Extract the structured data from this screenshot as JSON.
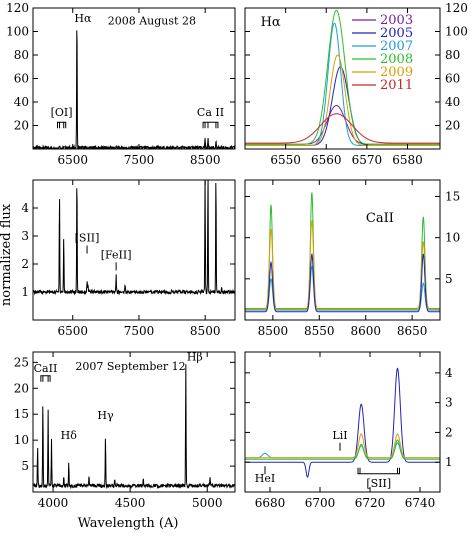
{
  "figure": {
    "ylabel": "normalized flux",
    "xlabel": "Wavelength (A)"
  },
  "chart_data": [
    {
      "id": "p1",
      "type": "line",
      "annotation": "2008 August 28",
      "xlim": [
        5900,
        8950
      ],
      "ylim": [
        0,
        120
      ],
      "xticks": [
        6500,
        7500,
        8500
      ],
      "yticks": [
        20,
        40,
        60,
        80,
        100,
        120
      ],
      "ytick_side": "left",
      "lines": [
        {
          "name": "Hα",
          "x": 6563
        }
      ],
      "brackets": [
        {
          "label": "[OI]",
          "lines": [
            6300,
            6364
          ]
        },
        {
          "label": "Ca II",
          "lines": [
            8498,
            8542,
            8662
          ]
        }
      ],
      "series": [
        {
          "color": "#000000",
          "continuum": 1,
          "peaks": [
            [
              6300,
              4
            ],
            [
              6364,
              2
            ],
            [
              6563,
              118
            ],
            [
              8498,
              9
            ],
            [
              8542,
              10
            ],
            [
              8662,
              8
            ]
          ]
        }
      ]
    },
    {
      "id": "p2",
      "type": "line",
      "annotation": "Hα",
      "xlim": [
        6540,
        6588
      ],
      "ylim": [
        0,
        120
      ],
      "xticks": [
        6550,
        6560,
        6570,
        6580
      ],
      "yticks": [
        20,
        40,
        60,
        80,
        100,
        120
      ],
      "ytick_side": "right",
      "legend_position": "top-right",
      "series": [
        {
          "name": "2003",
          "color": "#7b1fa2",
          "peaks": [
            [
              6562.5,
              37,
              3.2
            ]
          ],
          "continuum": 4
        },
        {
          "name": "2005",
          "color": "#2222bb",
          "peaks": [
            [
              6563.5,
              70,
              2.8
            ]
          ],
          "continuum": 3
        },
        {
          "name": "2007",
          "color": "#1f9fd1",
          "peaks": [
            [
              6562.0,
              107,
              2.2
            ]
          ],
          "continuum": 3
        },
        {
          "name": "2008",
          "color": "#2fbd2f",
          "peaks": [
            [
              6562.5,
              118,
              3.0
            ]
          ],
          "continuum": 4
        },
        {
          "name": "2009",
          "color": "#d9a000",
          "peaks": [
            [
              6562.8,
              80,
              2.6
            ]
          ],
          "continuum": 3
        },
        {
          "name": "2011",
          "color": "#c62828",
          "peaks": [
            [
              6562.5,
              30,
              5.5
            ]
          ],
          "continuum": 5
        }
      ]
    },
    {
      "id": "p3",
      "type": "line",
      "xlim": [
        5900,
        8950
      ],
      "ylim": [
        0,
        5
      ],
      "xticks": [
        6500,
        7500,
        8500
      ],
      "yticks": [
        1,
        2,
        3,
        4
      ],
      "ytick_side": "left",
      "labels": [
        {
          "text": "[SII]",
          "x": 6716
        },
        {
          "text": "[FeII]",
          "x": 7155
        }
      ],
      "series": [
        {
          "color": "#000000",
          "continuum": 1,
          "peaks": [
            [
              6300,
              4.6
            ],
            [
              6364,
              3.0
            ],
            [
              6563,
              5.3
            ],
            [
              6716,
              1.4
            ],
            [
              6731,
              1.3
            ],
            [
              7155,
              1.6
            ],
            [
              7291,
              1.3
            ],
            [
              8498,
              5.3
            ],
            [
              8542,
              5.3
            ],
            [
              8662,
              5.3
            ],
            [
              8750,
              1.2
            ]
          ]
        }
      ]
    },
    {
      "id": "p4",
      "type": "line",
      "annotation": "CaII",
      "xlim": [
        8470,
        8680
      ],
      "ylim": [
        0,
        17
      ],
      "xticks": [
        8500,
        8550,
        8600,
        8650
      ],
      "yticks": [
        5,
        10,
        15
      ],
      "ytick_side": "right",
      "series": [
        {
          "name": "2007",
          "color": "#1f9fd1",
          "continuum": 1.2,
          "peaks": [
            [
              8498,
              5.0,
              2.4
            ],
            [
              8542,
              6.5,
              2.4
            ],
            [
              8662,
              4.5,
              2.4
            ]
          ]
        },
        {
          "name": "2008",
          "color": "#2fbd2f",
          "continuum": 1.4,
          "peaks": [
            [
              8498,
              14.0,
              2.2
            ],
            [
              8542,
              15.5,
              2.2
            ],
            [
              8662,
              12.5,
              2.4
            ]
          ]
        },
        {
          "name": "2009",
          "color": "#d9a000",
          "continuum": 1.3,
          "peaks": [
            [
              8498,
              11.0,
              2.6
            ],
            [
              8542,
              12.0,
              2.6
            ],
            [
              8662,
              9.5,
              2.6
            ]
          ]
        },
        {
          "name": "2005",
          "color": "#2222bb",
          "continuum": 1.0,
          "peaks": [
            [
              8498,
              7.0,
              2.4
            ],
            [
              8542,
              8.0,
              2.4
            ],
            [
              8662,
              8.0,
              2.4
            ]
          ]
        }
      ]
    },
    {
      "id": "p5",
      "type": "line",
      "annotation": "2007 September 12",
      "xlim": [
        3870,
        5180
      ],
      "ylim": [
        0,
        27
      ],
      "xticks": [
        4000,
        4500,
        5000
      ],
      "yticks": [
        5,
        10,
        15,
        20,
        25
      ],
      "ytick_side": "left",
      "lines": [
        {
          "name": "Hδ",
          "x": 4102
        },
        {
          "name": "Hγ",
          "x": 4340
        },
        {
          "name": "Hβ",
          "x": 4861
        }
      ],
      "brackets": [
        {
          "label": "CaII",
          "lines": [
            3934,
            3968
          ]
        }
      ],
      "series": [
        {
          "color": "#000000",
          "continuum": 1.2,
          "peaks": [
            [
              3900,
              9
            ],
            [
              3934,
              18
            ],
            [
              3968,
              16
            ],
            [
              3990,
              10
            ],
            [
              4070,
              3
            ],
            [
              4102,
              6
            ],
            [
              4233,
              3
            ],
            [
              4340,
              11
            ],
            [
              4400,
              2.5
            ],
            [
              4585,
              2.5
            ],
            [
              4861,
              25
            ],
            [
              5018,
              3
            ]
          ]
        }
      ]
    },
    {
      "id": "p6",
      "type": "line",
      "xlim": [
        6670,
        6748
      ],
      "ylim": [
        0,
        4.7
      ],
      "xticks": [
        6680,
        6700,
        6720,
        6740
      ],
      "yticks": [
        1,
        2,
        3,
        4
      ],
      "ytick_side": "right",
      "lines": [
        {
          "name": "HeI",
          "x": 6678
        },
        {
          "name": "LiI",
          "x": 6708
        }
      ],
      "brackets": [
        {
          "label": "[SII]",
          "lines": [
            6716,
            6731
          ]
        }
      ],
      "series": [
        {
          "name": "2005",
          "color": "#2222bb",
          "continuum": 1.0,
          "dips": [
            [
              6695,
              0.5,
              0.8
            ]
          ],
          "peaks": [
            [
              6716.5,
              2.95,
              1.6
            ],
            [
              6731,
              4.15,
              1.6
            ]
          ]
        },
        {
          "name": "2007",
          "color": "#1f9fd1",
          "continuum": 1.15,
          "peaks": [
            [
              6678,
              1.3,
              1.5
            ],
            [
              6716.5,
              1.55,
              1.4
            ],
            [
              6731,
              1.65,
              1.4
            ]
          ]
        },
        {
          "name": "2008",
          "color": "#2fbd2f",
          "continuum": 1.1,
          "peaks": [
            [
              6716.5,
              1.6,
              1.4
            ],
            [
              6731,
              1.75,
              1.4
            ]
          ]
        },
        {
          "name": "2009",
          "color": "#d9a000",
          "continuum": 1.15,
          "peaks": [
            [
              6716.5,
              1.95,
              1.5
            ],
            [
              6731,
              1.95,
              1.5
            ]
          ]
        }
      ]
    }
  ]
}
